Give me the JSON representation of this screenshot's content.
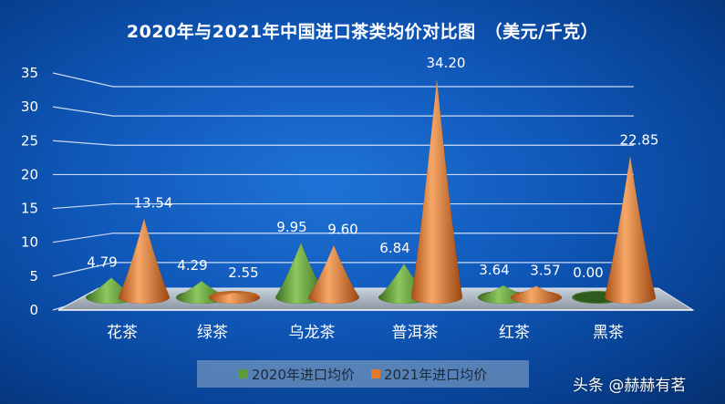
{
  "title": "2020年与2021年中国进口茶类均价对比图　（美元/千克）",
  "watermark": "头条 @赫赫有茗",
  "colors": {
    "series1": "#5e9a3a",
    "series2": "#e37a2b",
    "background": "#0f57b8"
  },
  "chart_data": {
    "type": "bar",
    "subtype": "3d-cone",
    "title": "2020年与2021年中国进口茶类均价对比图　（美元/千克）",
    "categories": [
      "花茶",
      "绿茶",
      "乌龙茶",
      "普洱茶",
      "红茶",
      "黑茶"
    ],
    "series": [
      {
        "name": "2020年进口均价",
        "values": [
          4.79,
          4.29,
          9.95,
          6.84,
          3.64,
          0.0
        ],
        "labels": [
          "4.79",
          "4.29",
          "9.95",
          "6.84",
          "3.64",
          "0.00"
        ]
      },
      {
        "name": "2021年进口均价",
        "values": [
          13.54,
          2.55,
          9.6,
          34.2,
          3.57,
          22.85
        ],
        "labels": [
          "13.54",
          "2.55",
          "9.60",
          "34.20",
          "3.57",
          "22.85"
        ]
      }
    ],
    "yticks": [
      "0",
      "5",
      "10",
      "15",
      "20",
      "25",
      "30",
      "35"
    ],
    "ylim": [
      0,
      35
    ],
    "grid": true,
    "legend": "bottom"
  }
}
